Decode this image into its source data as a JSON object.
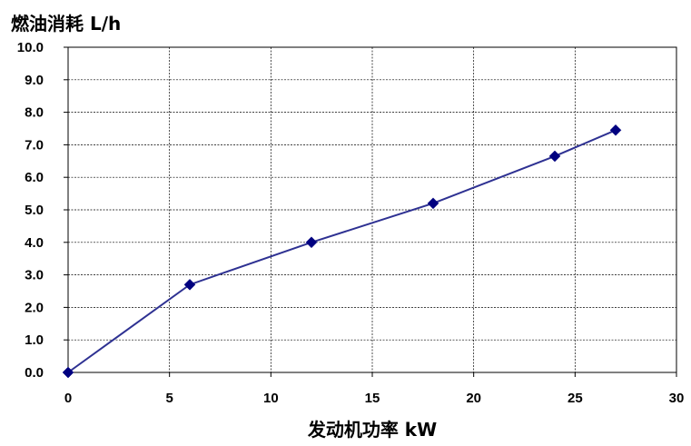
{
  "chart_data": {
    "type": "line",
    "ylabel": "燃油消耗 L/h",
    "xlabel": "发动机功率  kW",
    "xlim": [
      0,
      30
    ],
    "ylim": [
      0,
      10
    ],
    "x_ticks": [
      0,
      5,
      10,
      15,
      20,
      25,
      30
    ],
    "x_tick_labels": [
      "0",
      "5",
      "10",
      "15",
      "20",
      "25",
      "30"
    ],
    "y_ticks": [
      0,
      1,
      2,
      3,
      4,
      5,
      6,
      7,
      8,
      9,
      10
    ],
    "y_tick_labels": [
      "0.0",
      "1.0",
      "2.0",
      "3.0",
      "4.0",
      "5.0",
      "6.0",
      "7.0",
      "8.0",
      "9.0",
      "10.0"
    ],
    "grid": true,
    "series": [
      {
        "x": [
          0,
          6,
          12,
          18,
          24,
          27
        ],
        "y": [
          0.0,
          2.7,
          4.0,
          5.2,
          6.65,
          7.45
        ],
        "color": "#2e3192",
        "marker_color": "#000080",
        "marker": "diamond"
      }
    ]
  }
}
